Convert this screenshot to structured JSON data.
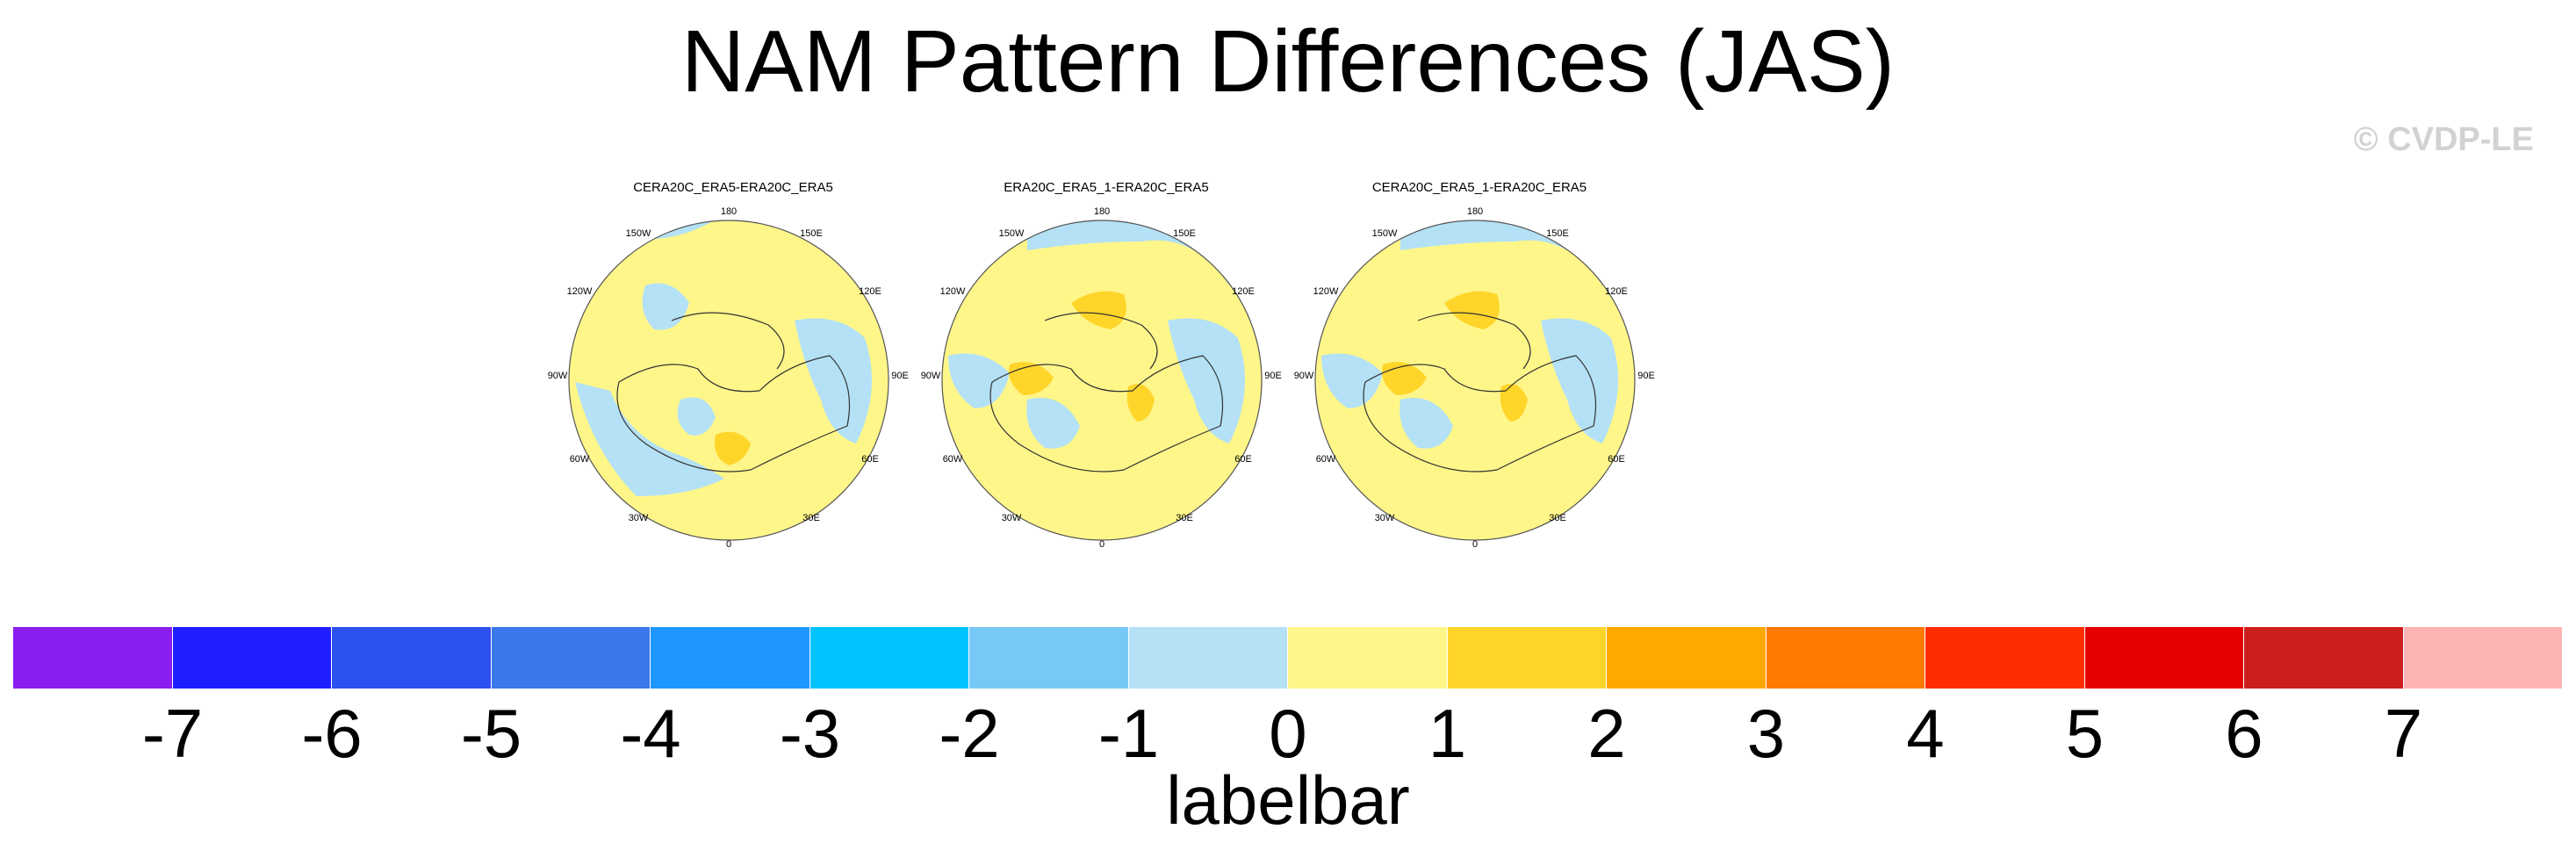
{
  "title": "NAM Pattern Differences (JAS)",
  "watermark": "© CVDP-LE",
  "longitude_labels": [
    "180",
    "150E",
    "120E",
    "90E",
    "60E",
    "30E",
    "0",
    "30W",
    "60W",
    "90W",
    "120W",
    "150W"
  ],
  "panels": [
    {
      "title": "CERA20C_ERA5-ERA20C_ERA5"
    },
    {
      "title": "ERA20C_ERA5_1-ERA20C_ERA5"
    },
    {
      "title": "CERA20C_ERA5_1-ERA20C_ERA5"
    }
  ],
  "labelbar": {
    "title": "labelbar",
    "ticks": [
      "-7",
      "-6",
      "-5",
      "-4",
      "-3",
      "-2",
      "-1",
      "0",
      "1",
      "2",
      "3",
      "4",
      "5",
      "6",
      "7"
    ],
    "colors": [
      "#8a1ef0",
      "#1e1eff",
      "#2d50f0",
      "#3a78eb",
      "#1e96ff",
      "#00c3ff",
      "#78c8f5",
      "#b4e1f5",
      "#fff68a",
      "#ffd52a",
      "#ffa800",
      "#ff7a00",
      "#ff2d00",
      "#e60000",
      "#cd1e1e",
      "#ffb4b4"
    ]
  },
  "colors": {
    "near_zero_positive": "#fff68a",
    "near_zero_negative": "#b4e1f5",
    "positive_1_2": "#ffd52a"
  }
}
